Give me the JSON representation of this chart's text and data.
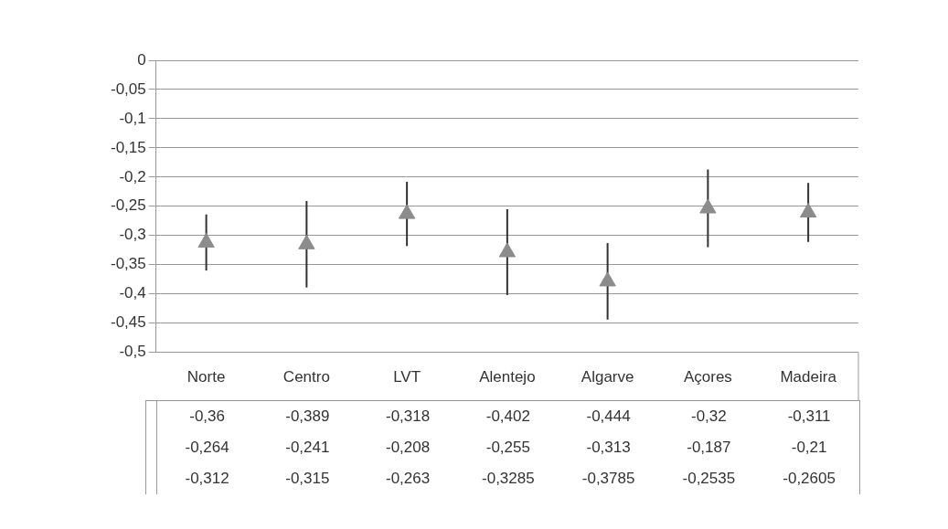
{
  "chart_data": {
    "type": "scatter",
    "categories": [
      "Norte",
      "Centro",
      "LVT",
      "Alentejo",
      "Algarve",
      "Açores",
      "Madeira"
    ],
    "series": [
      {
        "color": "#8c8c8c",
        "values": [
          -0.312,
          -0.315,
          -0.263,
          -0.3285,
          -0.3785,
          -0.2535,
          -0.2605
        ],
        "errors": [
          [
            -0.36,
            -0.264
          ],
          [
            -0.389,
            -0.241
          ],
          [
            -0.318,
            -0.208
          ],
          [
            -0.402,
            -0.255
          ],
          [
            -0.444,
            -0.313
          ],
          [
            -0.32,
            -0.187
          ],
          [
            -0.311,
            -0.21
          ]
        ],
        "value_labels": [
          "-0,312",
          "-0,315",
          "-0,263",
          "-0,3285",
          "-0,3785",
          "-0,2535",
          "-0,2605"
        ]
      }
    ],
    "annotations": [
      "-0,36",
      "-0,389",
      "-0,318",
      "-0,402",
      "-0,444",
      "-0,32",
      "-0,311",
      "-0,264",
      "-0,241",
      "-0,208",
      "-0,255",
      "-0,313",
      "-0,187",
      "-0,21"
    ],
    "ylim": [
      -0.5,
      0
    ],
    "yticks": [
      0,
      {
        "value": -0.05,
        "label": "-0,05"
      },
      {
        "value": -0.1,
        "label": "-0,1"
      },
      {
        "value": -0.15,
        "label": "-0,15"
      },
      {
        "value": -0.2,
        "label": "-0,2"
      },
      {
        "value": -0.25,
        "label": "-0,25"
      },
      {
        "value": -0.3,
        "label": "-0,3"
      },
      {
        "value": -0.35,
        "label": "-0,35"
      },
      {
        "value": -0.4,
        "label": "-0,4"
      },
      {
        "value": -0.45,
        "label": "-0,45"
      },
      {
        "value": -0.5,
        "label": "-0,5"
      }
    ],
    "grid": "y",
    "legend": false,
    "marker": "triangle"
  }
}
